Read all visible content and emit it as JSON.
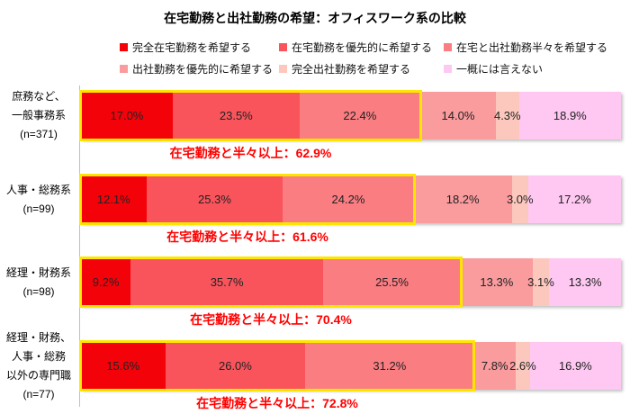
{
  "title": "在宅勤務と出社勤務の希望：オフィスワーク系の比較",
  "colors": {
    "highlight_box": "#ffe600",
    "annotation_text": "#ff0000",
    "axis_line": "#bfbfbf",
    "segment_label": "#222222"
  },
  "chart_data": {
    "type": "bar",
    "orientation": "horizontal",
    "stacked": true,
    "unit": "%",
    "xlim": [
      0,
      100
    ],
    "grid": false,
    "legend_position": "top",
    "title": "在宅勤務と出社勤務の希望：オフィスワーク系の比較",
    "series": [
      {
        "name": "完全在宅勤務を希望する",
        "color": "#f40209",
        "values": [
          17.0,
          12.1,
          9.2,
          15.6
        ]
      },
      {
        "name": "在宅勤務を優先的に希望する",
        "color": "#f9545c",
        "values": [
          23.5,
          25.3,
          35.7,
          26.0
        ]
      },
      {
        "name": "在宅と出社勤務半々を希望する",
        "color": "#fa7d82",
        "values": [
          22.4,
          24.2,
          25.5,
          31.2
        ]
      },
      {
        "name": "出社勤務を優先的に希望する",
        "color": "#fa9b9d",
        "values": [
          14.0,
          18.2,
          13.3,
          7.8
        ]
      },
      {
        "name": "完全出社勤務を希望する",
        "color": "#fcc8be",
        "values": [
          4.3,
          3.0,
          3.1,
          2.6
        ]
      },
      {
        "name": "一概には言えない",
        "color": "#fec8f2",
        "values": [
          18.9,
          17.2,
          13.3,
          16.9
        ]
      }
    ],
    "categories": [
      "庶務など、一般事務系 (n=371)",
      "人事・総務系 (n=99)",
      "経理・財務系 (n=98)",
      "経理・財務、人事・総務以外の専門職 (n=77)"
    ],
    "rows": [
      {
        "label_lines": [
          "庶務など、",
          "一般事務系",
          "(n=371)"
        ],
        "values": [
          17.0,
          23.5,
          22.4,
          14.0,
          4.3,
          18.9
        ],
        "value_labels": [
          "17.0%",
          "23.5%",
          "22.4%",
          "14.0%",
          "4.3%",
          "18.9%"
        ],
        "annotation": "在宅勤務と半々以上：62.9%",
        "highlight_series_count": 3,
        "highlight_total": 62.9
      },
      {
        "label_lines": [
          "人事・総務系",
          "(n=99)"
        ],
        "values": [
          12.1,
          25.3,
          24.2,
          18.2,
          3.0,
          17.2
        ],
        "value_labels": [
          "12.1%",
          "25.3%",
          "24.2%",
          "18.2%",
          "3.0%",
          "17.2%"
        ],
        "annotation": "在宅勤務と半々以上：61.6%",
        "highlight_series_count": 3,
        "highlight_total": 61.6
      },
      {
        "label_lines": [
          "経理・財務系",
          "(n=98)"
        ],
        "values": [
          9.2,
          35.7,
          25.5,
          13.3,
          3.1,
          13.3
        ],
        "value_labels": [
          "9.2%",
          "35.7%",
          "25.5%",
          "13.3%",
          "3.1%",
          "13.3%"
        ],
        "annotation": "在宅勤務と半々以上：70.4%",
        "highlight_series_count": 3,
        "highlight_total": 70.4
      },
      {
        "label_lines": [
          "経理・財務、",
          "人事・総務",
          "以外の専門職",
          "(n=77)"
        ],
        "values": [
          15.6,
          26.0,
          31.2,
          7.8,
          2.6,
          16.9
        ],
        "value_labels": [
          "15.6%",
          "26.0%",
          "31.2%",
          "7.8%",
          "2.6%",
          "16.9%"
        ],
        "annotation": "在宅勤務と半々以上：72.8%",
        "highlight_series_count": 3,
        "highlight_total": 72.8
      }
    ]
  }
}
